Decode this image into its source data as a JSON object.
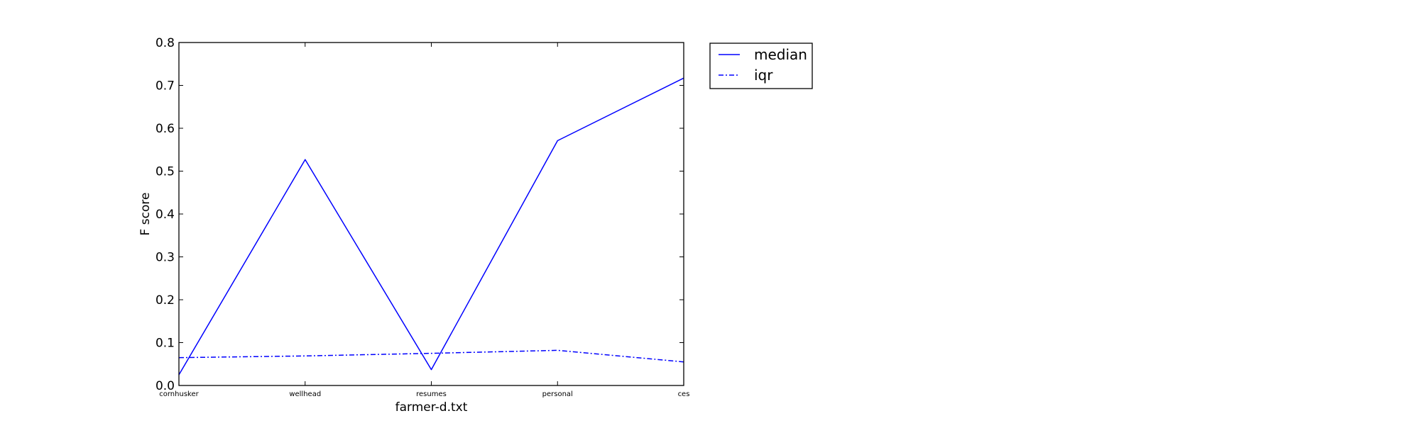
{
  "chart_data": {
    "type": "line",
    "title": "",
    "xlabel": "farmer-d.txt",
    "ylabel": "F score",
    "categories": [
      "cornhusker",
      "wellhead",
      "resumes",
      "personal",
      "ces"
    ],
    "ylim": [
      0.0,
      0.8
    ],
    "yticks": [
      "0.0",
      "0.1",
      "0.2",
      "0.3",
      "0.4",
      "0.5",
      "0.6",
      "0.7",
      "0.8"
    ],
    "grid": false,
    "legend_position": "outside-top-right",
    "series": [
      {
        "name": "median",
        "line_style": "solid",
        "color": "#0000ff",
        "values": [
          0.025,
          0.527,
          0.037,
          0.571,
          0.717
        ]
      },
      {
        "name": "iqr",
        "line_style": "dashdot",
        "color": "#0000ff",
        "values": [
          0.065,
          0.069,
          0.075,
          0.082,
          0.055
        ]
      }
    ]
  }
}
